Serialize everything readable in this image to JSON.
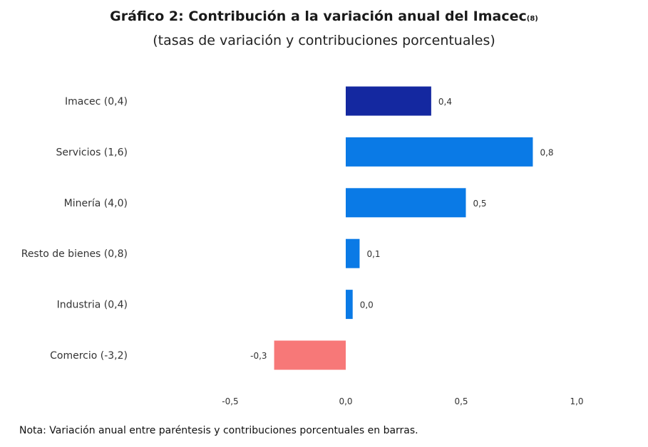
{
  "chart_data": {
    "type": "bar",
    "orientation": "horizontal",
    "title": "Gráfico 2: Contribución a la variación anual del Imacec",
    "title_superscript": "(8)",
    "subtitle": "(tasas de variación y contribuciones porcentuales)",
    "categories": [
      "Imacec (0,4)",
      "Servicios (1,6)",
      "Minería (4,0)",
      "Resto de bienes (0,8)",
      "Industria (0,4)",
      "Comercio (-3,2)"
    ],
    "values": [
      0.37,
      0.81,
      0.52,
      0.06,
      0.03,
      -0.31
    ],
    "value_labels": [
      "0,4",
      "0,8",
      "0,5",
      "0,1",
      "0,0",
      "-0,3"
    ],
    "colors": [
      "#1428a0",
      "#0a7ae6",
      "#0a7ae6",
      "#0a7ae6",
      "#0a7ae6",
      "#f77878"
    ],
    "xlim": [
      -0.5,
      1.0
    ],
    "xticks": [
      -0.5,
      0.0,
      0.5,
      1.0
    ],
    "xtick_labels": [
      "-0,5",
      "0,0",
      "0,5",
      "1,0"
    ],
    "grid": false,
    "legend": "none"
  },
  "note": "Nota: Variación anual entre paréntesis y contribuciones porcentuales en barras."
}
